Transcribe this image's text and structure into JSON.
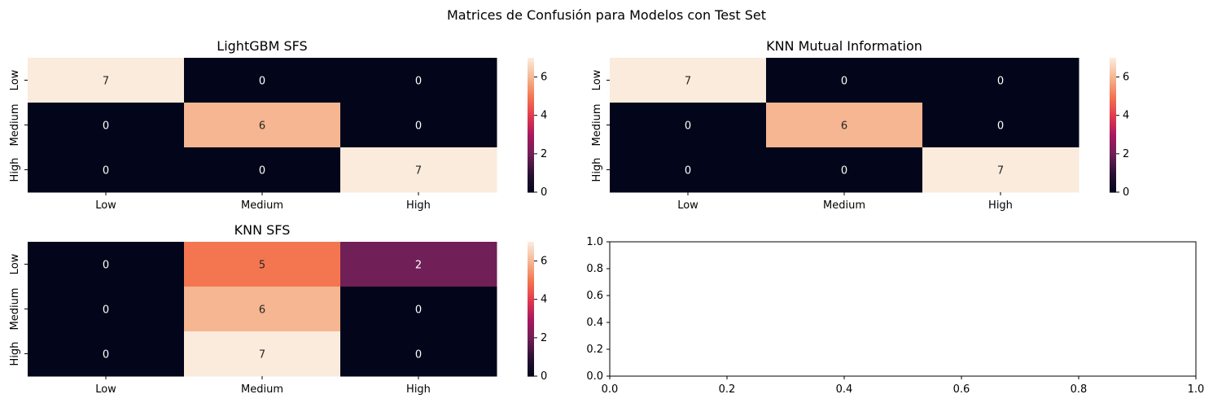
{
  "figure": {
    "suptitle": "Matrices de Confusión para Modelos con Test Set"
  },
  "chart_data": [
    {
      "type": "heatmap",
      "title": "LightGBM SFS",
      "x_categories": [
        "Low",
        "Medium",
        "High"
      ],
      "y_categories": [
        "Low",
        "Medium",
        "High"
      ],
      "values": [
        [
          7,
          0,
          0
        ],
        [
          0,
          6,
          0
        ],
        [
          0,
          0,
          7
        ]
      ],
      "colorbar": {
        "vmin": 0,
        "vmax": 7,
        "ticks": [
          0,
          2,
          4,
          6
        ],
        "colormap": "rocket"
      }
    },
    {
      "type": "heatmap",
      "title": "KNN Mutual Information",
      "x_categories": [
        "Low",
        "Medium",
        "High"
      ],
      "y_categories": [
        "Low",
        "Medium",
        "High"
      ],
      "values": [
        [
          7,
          0,
          0
        ],
        [
          0,
          6,
          0
        ],
        [
          0,
          0,
          7
        ]
      ],
      "colorbar": {
        "vmin": 0,
        "vmax": 7,
        "ticks": [
          0,
          2,
          4,
          6
        ],
        "colormap": "rocket"
      }
    },
    {
      "type": "heatmap",
      "title": "KNN SFS",
      "x_categories": [
        "Low",
        "Medium",
        "High"
      ],
      "y_categories": [
        "Low",
        "Medium",
        "High"
      ],
      "values": [
        [
          0,
          5,
          2
        ],
        [
          0,
          6,
          0
        ],
        [
          0,
          7,
          0
        ]
      ],
      "colorbar": {
        "vmin": 0,
        "vmax": 7,
        "ticks": [
          0,
          2,
          4,
          6
        ],
        "colormap": "rocket"
      }
    },
    {
      "type": "scatter",
      "title": "",
      "empty": true,
      "xlim": [
        0,
        1
      ],
      "ylim": [
        0,
        1
      ],
      "x_ticks": [
        "0.0",
        "0.2",
        "0.4",
        "0.6",
        "0.8",
        "1.0"
      ],
      "y_ticks": [
        "0.0",
        "0.2",
        "0.4",
        "0.6",
        "0.8",
        "1.0"
      ]
    }
  ]
}
